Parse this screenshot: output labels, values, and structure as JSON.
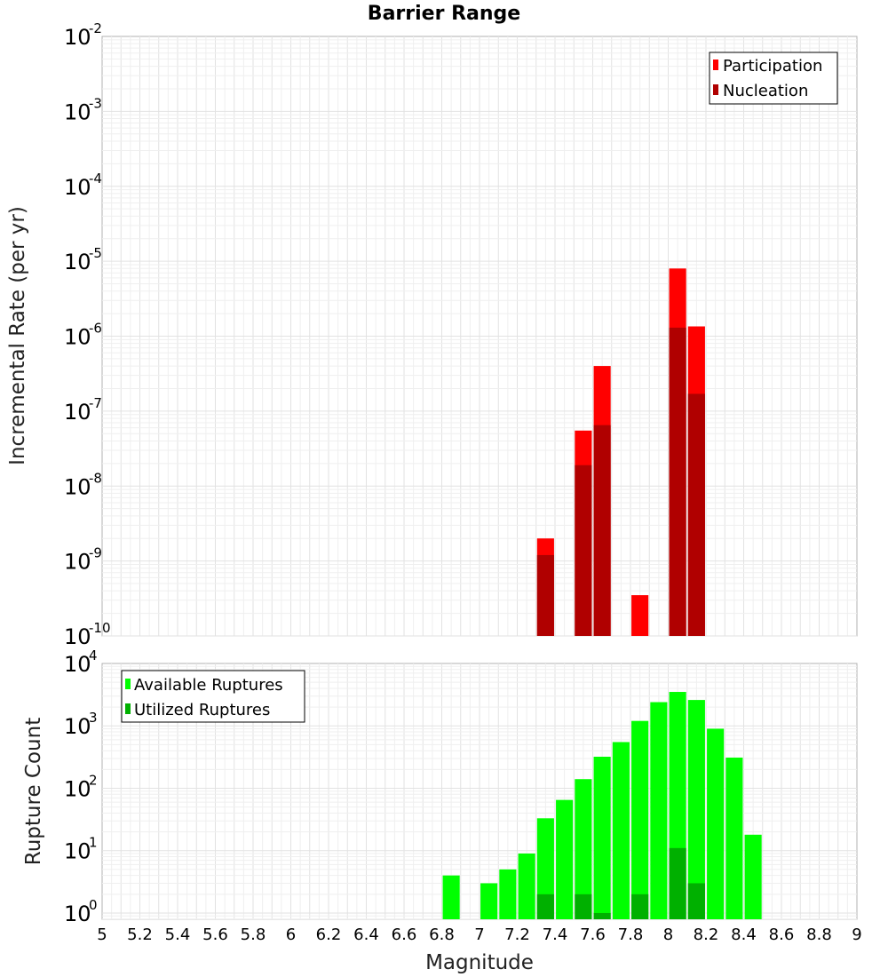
{
  "title": "Barrier Range",
  "colors": {
    "participation": "#ff0000",
    "nucleation": "#b00000",
    "available": "#00ff00",
    "utilized": "#00b000"
  },
  "chart_data": [
    {
      "type": "bar",
      "scale": "log",
      "ylabel": "Incremental Rate (per yr)",
      "xlabel": "",
      "xlim": [
        5,
        9
      ],
      "ylim_exp": [
        -10,
        -2
      ],
      "legend": {
        "placement": "top-right",
        "entries": [
          "Participation",
          "Nucleation"
        ]
      },
      "series": [
        {
          "name": "Participation",
          "points": [
            {
              "x": 7.35,
              "y": 2e-09
            },
            {
              "x": 7.55,
              "y": 5.5e-08
            },
            {
              "x": 7.65,
              "y": 4e-07
            },
            {
              "x": 7.85,
              "y": 3.5e-10
            },
            {
              "x": 8.05,
              "y": 8e-06
            },
            {
              "x": 8.15,
              "y": 1.35e-06
            }
          ]
        },
        {
          "name": "Nucleation",
          "points": [
            {
              "x": 7.35,
              "y": 1.2e-09
            },
            {
              "x": 7.55,
              "y": 1.9e-08
            },
            {
              "x": 7.65,
              "y": 6.5e-08
            },
            {
              "x": 8.05,
              "y": 1.3e-06
            },
            {
              "x": 8.15,
              "y": 1.7e-07
            }
          ]
        }
      ]
    },
    {
      "type": "bar",
      "scale": "log",
      "ylabel": "Rupture Count",
      "xlabel": "Magnitude",
      "xlim": [
        5,
        9
      ],
      "ylim_exp": [
        -0.1,
        4
      ],
      "legend": {
        "placement": "top-left",
        "entries": [
          "Available Ruptures",
          "Utilized Ruptures"
        ]
      },
      "series": [
        {
          "name": "Available Ruptures",
          "points": [
            {
              "x": 6.85,
              "y": 4
            },
            {
              "x": 7.05,
              "y": 3
            },
            {
              "x": 7.15,
              "y": 5
            },
            {
              "x": 7.25,
              "y": 9
            },
            {
              "x": 7.35,
              "y": 33
            },
            {
              "x": 7.45,
              "y": 65
            },
            {
              "x": 7.55,
              "y": 140
            },
            {
              "x": 7.65,
              "y": 320
            },
            {
              "x": 7.75,
              "y": 550
            },
            {
              "x": 7.85,
              "y": 1200
            },
            {
              "x": 7.95,
              "y": 2400
            },
            {
              "x": 8.05,
              "y": 3500
            },
            {
              "x": 8.15,
              "y": 2600
            },
            {
              "x": 8.25,
              "y": 900
            },
            {
              "x": 8.35,
              "y": 310
            },
            {
              "x": 8.45,
              "y": 18
            }
          ]
        },
        {
          "name": "Utilized Ruptures",
          "points": [
            {
              "x": 7.35,
              "y": 2
            },
            {
              "x": 7.55,
              "y": 2
            },
            {
              "x": 7.65,
              "y": 1
            },
            {
              "x": 7.85,
              "y": 2
            },
            {
              "x": 8.05,
              "y": 11
            },
            {
              "x": 8.15,
              "y": 3
            }
          ]
        }
      ]
    }
  ],
  "xticks": [
    "5",
    "5.2",
    "5.4",
    "5.6",
    "5.8",
    "6",
    "6.2",
    "6.4",
    "6.6",
    "6.8",
    "7",
    "7.2",
    "7.4",
    "7.6",
    "7.8",
    "8",
    "8.2",
    "8.4",
    "8.6",
    "8.8",
    "9"
  ],
  "top_yticks": [
    {
      "base": "10",
      "exp": "-2"
    },
    {
      "base": "10",
      "exp": "-3"
    },
    {
      "base": "10",
      "exp": "-4"
    },
    {
      "base": "10",
      "exp": "-5"
    },
    {
      "base": "10",
      "exp": "-6"
    },
    {
      "base": "10",
      "exp": "-7"
    },
    {
      "base": "10",
      "exp": "-8"
    },
    {
      "base": "10",
      "exp": "-9"
    },
    {
      "base": "10",
      "exp": "-10"
    }
  ],
  "bottom_yticks": [
    {
      "base": "10",
      "exp": "4"
    },
    {
      "base": "10",
      "exp": "3"
    },
    {
      "base": "10",
      "exp": "2"
    },
    {
      "base": "10",
      "exp": "1"
    },
    {
      "base": "10",
      "exp": "0"
    }
  ]
}
